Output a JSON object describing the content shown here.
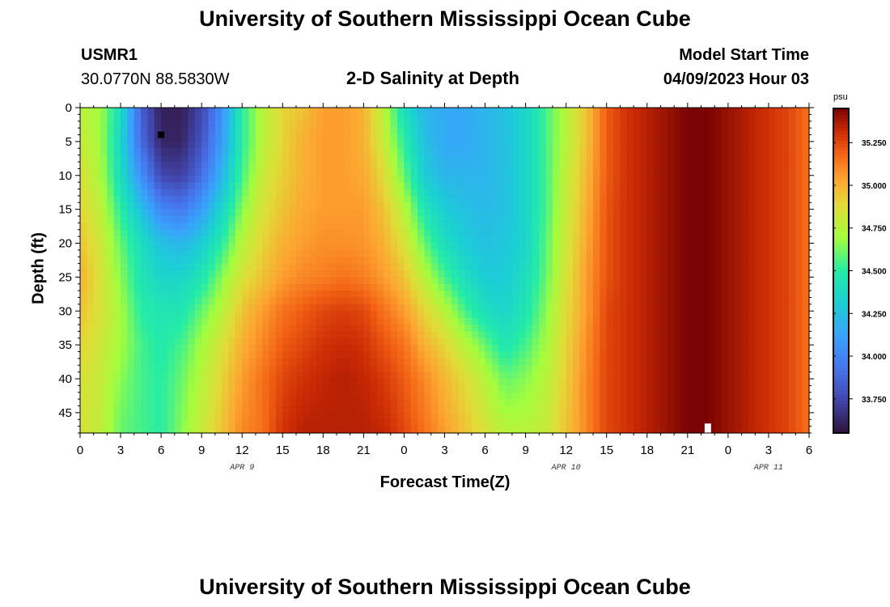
{
  "header": {
    "title": "University of Southern Mississippi Ocean Cube",
    "station_id": "USMR1",
    "coordinates": "30.0770N  88.5830W",
    "subtitle": "2-D Salinity at Depth",
    "model_start_label": "Model Start Time",
    "model_start_value": "04/09/2023 Hour 03"
  },
  "footer": {
    "title": "University of Southern Mississippi Ocean Cube"
  },
  "chart_data": {
    "type": "heatmap",
    "title": "2-D Salinity at Depth",
    "xlabel": "Forecast Time(Z)",
    "ylabel": "Depth (ft)",
    "x_ticks": [
      "0",
      "3",
      "6",
      "9",
      "12",
      "15",
      "18",
      "21",
      "0",
      "3",
      "6",
      "9",
      "12",
      "15",
      "18",
      "21",
      "0",
      "3",
      "6"
    ],
    "x_range_hours": [
      0,
      54
    ],
    "day_labels": [
      {
        "label": "APR 9",
        "hour": 12
      },
      {
        "label": "APR 10",
        "hour": 36
      },
      {
        "label": "APR 11",
        "hour": 51
      }
    ],
    "y_ticks": [
      0,
      5,
      10,
      15,
      20,
      25,
      30,
      35,
      40,
      45
    ],
    "ylim": [
      0,
      48
    ],
    "y_inverted": true,
    "colorbar": {
      "unit": "psu",
      "min": 33.55,
      "max": 35.45,
      "ticks": [
        "35.250",
        "35.000",
        "34.750",
        "34.500",
        "34.250",
        "34.000",
        "33.750"
      ],
      "colormap": "turbo"
    },
    "markers": [
      {
        "name": "black-square",
        "hour": 6,
        "depth": 4,
        "color": "#000000"
      },
      {
        "name": "white-bar",
        "hour": 46.5,
        "depth": 47.2,
        "color": "#ffffff"
      }
    ],
    "salinity_profiles": {
      "depths": [
        0,
        5,
        10,
        15,
        20,
        25,
        30,
        35,
        40,
        48
      ],
      "columns": [
        {
          "hour": 0,
          "values": [
            34.75,
            34.8,
            34.85,
            34.9,
            34.95,
            35.0,
            34.95,
            34.9,
            34.85,
            34.85
          ]
        },
        {
          "hour": 1.5,
          "values": [
            34.7,
            34.7,
            34.72,
            34.78,
            34.82,
            34.85,
            34.85,
            34.82,
            34.8,
            34.78
          ]
        },
        {
          "hour": 3,
          "values": [
            34.4,
            34.35,
            34.4,
            34.5,
            34.6,
            34.65,
            34.7,
            34.7,
            34.65,
            34.6
          ]
        },
        {
          "hour": 4.5,
          "values": [
            33.85,
            33.9,
            34.05,
            34.25,
            34.4,
            34.45,
            34.5,
            34.55,
            34.55,
            34.55
          ]
        },
        {
          "hour": 6,
          "values": [
            33.6,
            33.62,
            33.75,
            34.0,
            34.25,
            34.35,
            34.45,
            34.48,
            34.5,
            34.5
          ]
        },
        {
          "hour": 7.5,
          "values": [
            33.6,
            33.62,
            33.72,
            33.95,
            34.2,
            34.35,
            34.45,
            34.55,
            34.6,
            34.65
          ]
        },
        {
          "hour": 9,
          "values": [
            33.75,
            33.8,
            33.9,
            34.1,
            34.3,
            34.45,
            34.6,
            34.7,
            34.75,
            34.8
          ]
        },
        {
          "hour": 10.5,
          "values": [
            34.05,
            34.1,
            34.2,
            34.35,
            34.5,
            34.65,
            34.75,
            34.85,
            34.9,
            34.95
          ]
        },
        {
          "hour": 12,
          "values": [
            34.5,
            34.5,
            34.55,
            34.65,
            34.75,
            34.85,
            34.95,
            35.0,
            35.05,
            35.1
          ]
        },
        {
          "hour": 13.5,
          "values": [
            34.75,
            34.75,
            34.8,
            34.85,
            34.9,
            34.95,
            35.05,
            35.1,
            35.15,
            35.15
          ]
        },
        {
          "hour": 15,
          "values": [
            34.9,
            34.9,
            34.92,
            34.95,
            35.0,
            35.05,
            35.15,
            35.2,
            35.25,
            35.3
          ]
        },
        {
          "hour": 16.5,
          "values": [
            34.95,
            35.0,
            35.0,
            35.02,
            35.05,
            35.1,
            35.2,
            35.25,
            35.3,
            35.35
          ]
        },
        {
          "hour": 18,
          "values": [
            35.05,
            35.05,
            35.05,
            35.05,
            35.08,
            35.12,
            35.25,
            35.3,
            35.33,
            35.35
          ]
        },
        {
          "hour": 19.5,
          "values": [
            35.05,
            35.05,
            35.05,
            35.05,
            35.08,
            35.15,
            35.27,
            35.32,
            35.35,
            35.35
          ]
        },
        {
          "hour": 21,
          "values": [
            35.0,
            35.0,
            35.02,
            35.05,
            35.07,
            35.12,
            35.25,
            35.3,
            35.33,
            35.35
          ]
        },
        {
          "hour": 22.5,
          "values": [
            34.75,
            34.8,
            34.88,
            34.95,
            35.0,
            35.05,
            35.15,
            35.22,
            35.28,
            35.33
          ]
        },
        {
          "hour": 24,
          "values": [
            34.4,
            34.5,
            34.6,
            34.75,
            34.85,
            34.95,
            35.05,
            35.15,
            35.2,
            35.25
          ]
        },
        {
          "hour": 25.5,
          "values": [
            34.2,
            34.25,
            34.3,
            34.45,
            34.6,
            34.75,
            34.9,
            35.0,
            35.1,
            35.15
          ]
        },
        {
          "hour": 27,
          "values": [
            34.15,
            34.15,
            34.2,
            34.3,
            34.4,
            34.55,
            34.75,
            34.9,
            34.98,
            35.05
          ]
        },
        {
          "hour": 28.5,
          "values": [
            34.15,
            34.15,
            34.2,
            34.25,
            34.3,
            34.4,
            34.55,
            34.75,
            34.88,
            34.95
          ]
        },
        {
          "hour": 30,
          "values": [
            34.2,
            34.2,
            34.2,
            34.22,
            34.25,
            34.3,
            34.4,
            34.6,
            34.75,
            34.85
          ]
        },
        {
          "hour": 31.5,
          "values": [
            34.25,
            34.25,
            34.25,
            34.25,
            34.28,
            34.3,
            34.35,
            34.45,
            34.6,
            34.75
          ]
        },
        {
          "hour": 33,
          "values": [
            34.35,
            34.35,
            34.35,
            34.35,
            34.35,
            34.4,
            34.45,
            34.55,
            34.65,
            34.75
          ]
        },
        {
          "hour": 34.5,
          "values": [
            34.55,
            34.55,
            34.55,
            34.55,
            34.58,
            34.6,
            34.65,
            34.7,
            34.75,
            34.8
          ]
        },
        {
          "hour": 36,
          "values": [
            34.75,
            34.75,
            34.78,
            34.8,
            34.82,
            34.85,
            34.88,
            34.9,
            34.92,
            34.95
          ]
        },
        {
          "hour": 37.5,
          "values": [
            34.95,
            34.95,
            34.98,
            35.0,
            35.02,
            35.05,
            35.05,
            35.08,
            35.1,
            35.1
          ]
        },
        {
          "hour": 39,
          "values": [
            35.2,
            35.2,
            35.2,
            35.22,
            35.22,
            35.22,
            35.25,
            35.25,
            35.25,
            35.25
          ]
        },
        {
          "hour": 40.5,
          "values": [
            35.3,
            35.3,
            35.3,
            35.3,
            35.3,
            35.3,
            35.3,
            35.3,
            35.3,
            35.3
          ]
        },
        {
          "hour": 42,
          "values": [
            35.35,
            35.35,
            35.35,
            35.35,
            35.35,
            35.35,
            35.35,
            35.35,
            35.35,
            35.35
          ]
        },
        {
          "hour": 43.5,
          "values": [
            35.4,
            35.4,
            35.4,
            35.4,
            35.4,
            35.4,
            35.4,
            35.4,
            35.4,
            35.4
          ]
        },
        {
          "hour": 45,
          "values": [
            35.45,
            35.45,
            35.45,
            35.45,
            35.45,
            35.45,
            35.45,
            35.45,
            35.45,
            35.45
          ]
        },
        {
          "hour": 46.5,
          "values": [
            35.45,
            35.45,
            35.45,
            35.45,
            35.45,
            35.45,
            35.45,
            35.45,
            35.45,
            35.45
          ]
        },
        {
          "hour": 48,
          "values": [
            35.4,
            35.4,
            35.4,
            35.4,
            35.4,
            35.4,
            35.4,
            35.4,
            35.4,
            35.4
          ]
        },
        {
          "hour": 49.5,
          "values": [
            35.35,
            35.35,
            35.35,
            35.35,
            35.35,
            35.35,
            35.35,
            35.35,
            35.35,
            35.35
          ]
        },
        {
          "hour": 51,
          "values": [
            35.3,
            35.3,
            35.3,
            35.3,
            35.3,
            35.3,
            35.3,
            35.3,
            35.3,
            35.3
          ]
        },
        {
          "hour": 52.5,
          "values": [
            35.25,
            35.25,
            35.25,
            35.25,
            35.25,
            35.25,
            35.25,
            35.25,
            35.25,
            35.25
          ]
        },
        {
          "hour": 54,
          "values": [
            35.15,
            35.15,
            35.15,
            35.15,
            35.15,
            35.15,
            35.15,
            35.15,
            35.15,
            35.15
          ]
        }
      ]
    }
  }
}
